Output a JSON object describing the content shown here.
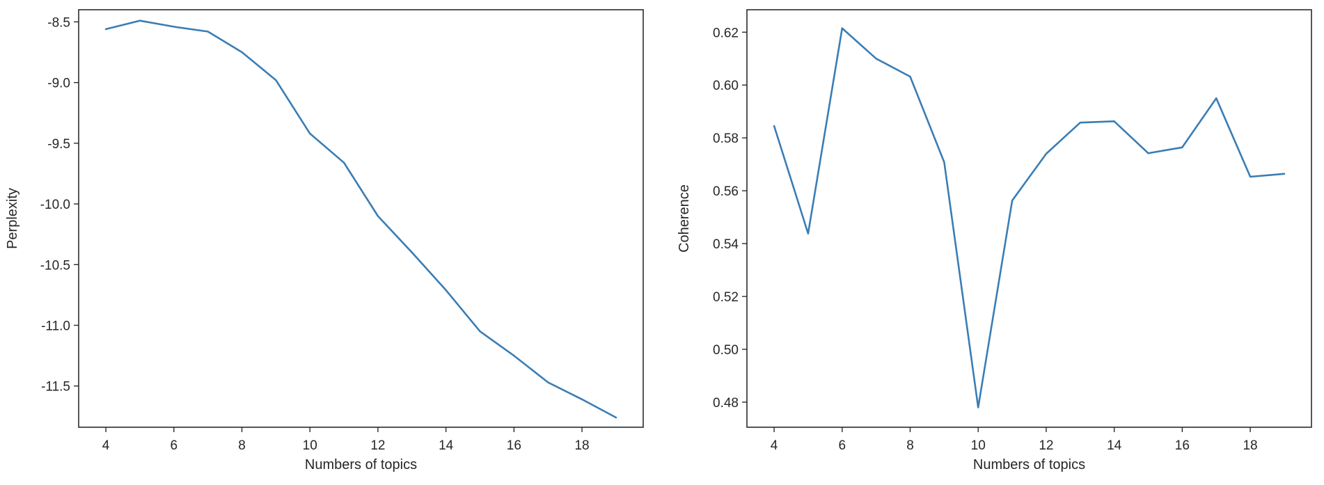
{
  "chart_data": [
    {
      "type": "line",
      "title": "",
      "xlabel": "Numbers of topics",
      "ylabel": "Perplexity",
      "xlim": [
        3.2,
        19.8
      ],
      "ylim": [
        -11.84,
        -8.4
      ],
      "xticks": [
        4,
        6,
        8,
        10,
        12,
        14,
        16,
        18
      ],
      "yticks": [
        -8.5,
        -9.0,
        -9.5,
        -10.0,
        -10.5,
        -11.0,
        -11.5
      ],
      "ytick_labels": [
        "-8.5",
        "-9.0",
        "-9.5",
        "-10.0",
        "-10.5",
        "-11.0",
        "-11.5"
      ],
      "grid": false,
      "series": [
        {
          "color": "#3a7db4",
          "x": [
            4,
            5,
            6,
            7,
            8,
            9,
            10,
            11,
            12,
            13,
            14,
            15,
            16,
            17,
            18,
            19
          ],
          "y": [
            -8.56,
            -8.49,
            -8.54,
            -8.58,
            -8.75,
            -8.98,
            -9.42,
            -9.66,
            -10.1,
            -10.4,
            -10.71,
            -11.05,
            -11.25,
            -11.47,
            -11.61,
            -11.76
          ]
        }
      ]
    },
    {
      "type": "line",
      "title": "",
      "xlabel": "Numbers of topics",
      "ylabel": "Coherence",
      "xlim": [
        3.2,
        19.8
      ],
      "ylim": [
        0.4705,
        0.6285
      ],
      "xticks": [
        4,
        6,
        8,
        10,
        12,
        14,
        16,
        18
      ],
      "yticks": [
        0.48,
        0.5,
        0.52,
        0.54,
        0.56,
        0.58,
        0.6,
        0.62
      ],
      "ytick_labels": [
        "0.48",
        "0.50",
        "0.52",
        "0.54",
        "0.56",
        "0.58",
        "0.60",
        "0.62"
      ],
      "grid": false,
      "series": [
        {
          "color": "#3a7db4",
          "x": [
            4,
            5,
            6,
            7,
            8,
            9,
            10,
            11,
            12,
            13,
            14,
            15,
            16,
            17,
            18,
            19
          ],
          "y": [
            0.5845,
            0.5438,
            0.6215,
            0.61,
            0.6032,
            0.5708,
            0.478,
            0.5563,
            0.574,
            0.5858,
            0.5863,
            0.5742,
            0.5764,
            0.595,
            0.5653,
            0.5664
          ]
        }
      ]
    }
  ]
}
